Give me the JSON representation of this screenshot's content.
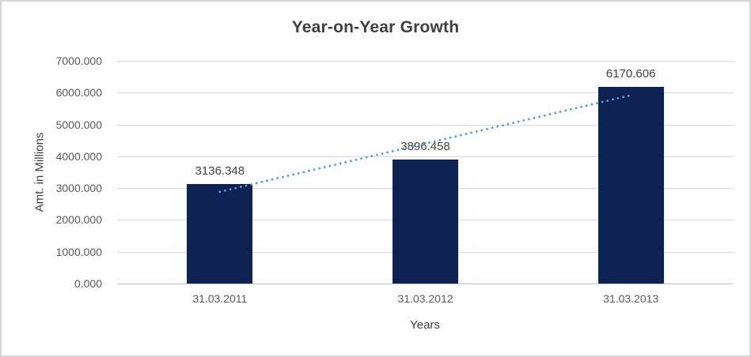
{
  "chart_data": {
    "type": "bar",
    "title": "Year-on-Year Growth",
    "xlabel": "Years",
    "ylabel": "Amt. in Millions",
    "categories": [
      "31.03.2011",
      "31.03.2012",
      "31.03.2013"
    ],
    "values": [
      3136.348,
      3896.458,
      6170.606
    ],
    "data_labels": [
      "3136.348",
      "3896.458",
      "6170.606"
    ],
    "y_ticks": [
      0,
      1000,
      2000,
      3000,
      4000,
      5000,
      6000,
      7000
    ],
    "y_tick_labels": [
      "0.000",
      "1000.000",
      "2000.000",
      "3000.000",
      "4000.000",
      "5000.000",
      "6000.000",
      "7000.000"
    ],
    "ylim": [
      0,
      7000
    ],
    "grid": true,
    "legend": "none",
    "trendline": {
      "kind": "linear",
      "style": "dotted"
    },
    "colors": {
      "bar": "#0e2254",
      "trendline": "#5b9bd5",
      "gridline": "#d9d9d9",
      "axis_line": "#bfbfbf",
      "title_text": "#3f3f3f",
      "tick_text": "#595959",
      "label_text": "#404040",
      "frame_border": "#d6d6d6"
    }
  }
}
